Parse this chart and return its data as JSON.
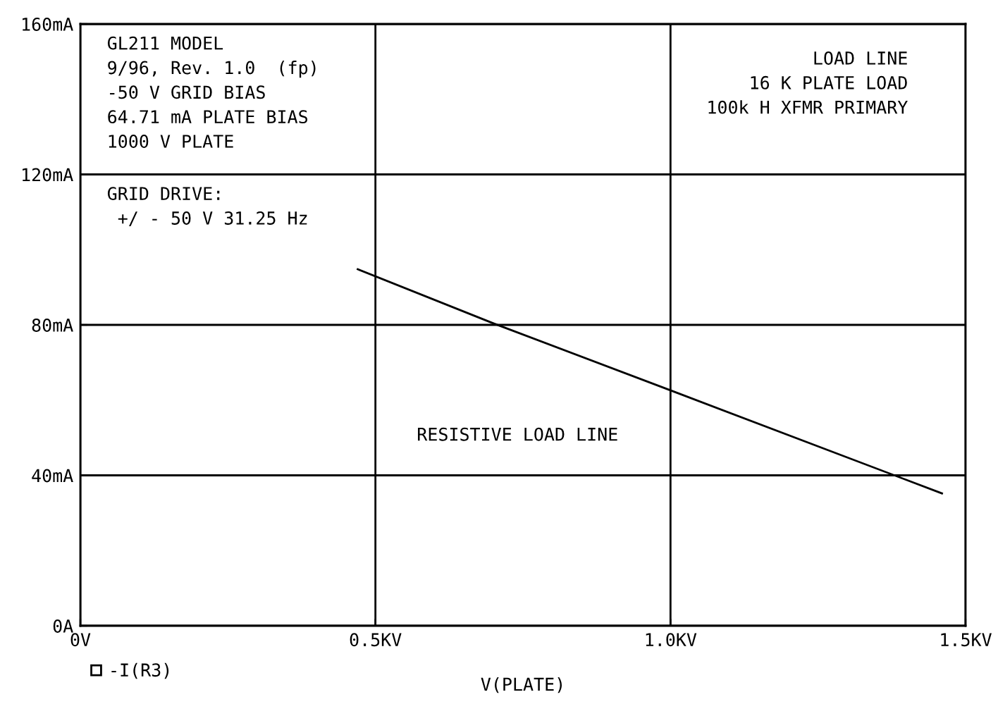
{
  "chart_data": {
    "type": "line",
    "xlabel": "V(PLATE)",
    "x": [
      0.47,
      0.7,
      1.0,
      1.46
    ],
    "series": [
      {
        "name": "-I(R3)",
        "color": "#000000",
        "values": [
          94.8,
          80.4,
          62.6,
          35.2
        ]
      }
    ],
    "xlim": [
      0,
      1.5
    ],
    "xticks": [
      {
        "value": 0,
        "label": "0V"
      },
      {
        "value": 0.5,
        "label": "0.5KV"
      },
      {
        "value": 1.0,
        "label": "1.0KV"
      },
      {
        "value": 1.5,
        "label": "1.5KV"
      }
    ],
    "ylim": [
      0,
      160
    ],
    "yticks": [
      {
        "value": 0,
        "label": "0A"
      },
      {
        "value": 40,
        "label": "40mA"
      },
      {
        "value": 80,
        "label": "80mA"
      },
      {
        "value": 120,
        "label": "120mA"
      },
      {
        "value": 160,
        "label": "160mA"
      }
    ],
    "grid": true,
    "legend": "bottom left",
    "marker": "none",
    "line_style": "solid",
    "annotations": [
      "GL211 MODEL\n9/96, Rev. 1.0  (fp)\n-50 V GRID BIAS\n64.71 mA PLATE BIAS\n1000 V PLATE",
      "GRID DRIVE:\n +/ - 50 V 31.25 Hz",
      "LOAD LINE\n  16 K PLATE LOAD\n100k H XFMR PRIMARY",
      "RESISTIVE LOAD LINE"
    ]
  }
}
